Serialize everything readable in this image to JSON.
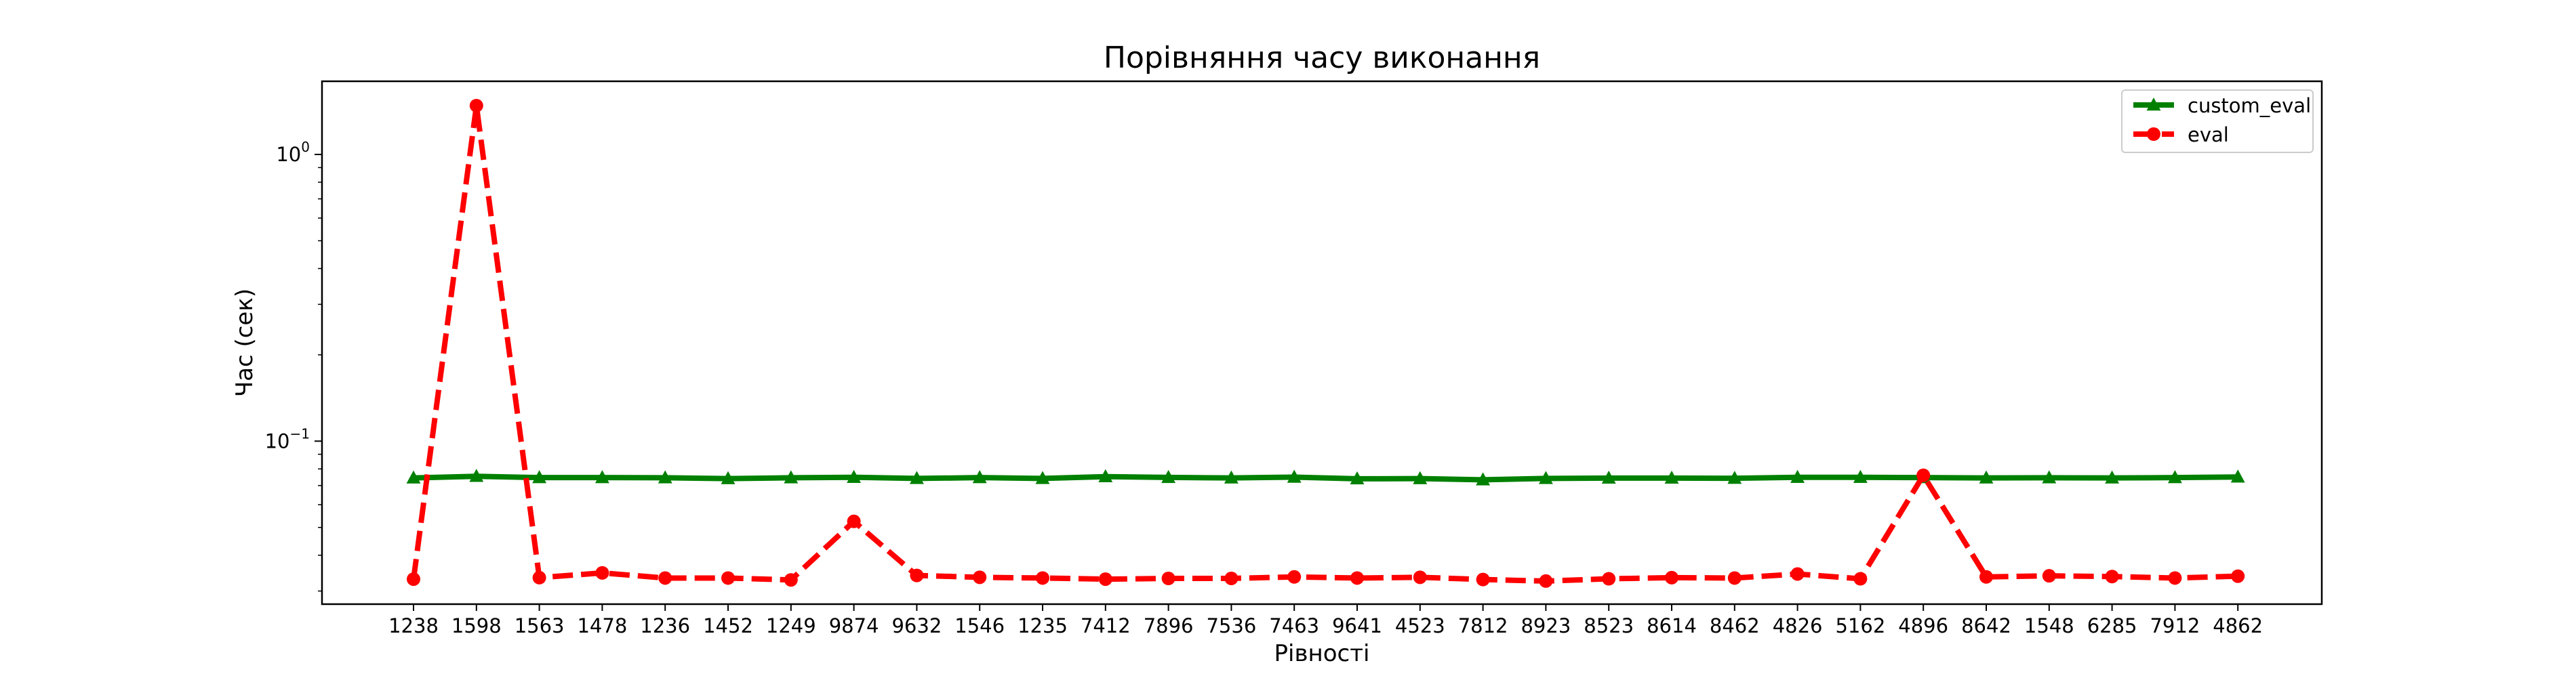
{
  "chart_data": {
    "type": "line",
    "title": "Порівняння часу виконання",
    "xlabel": "Рівності",
    "ylabel": "Час (сек)",
    "yscale": "log",
    "ylim": [
      0.027,
      1.8
    ],
    "yticks": [
      {
        "value": 0.1,
        "base": "10",
        "exp": "−1"
      },
      {
        "value": 1.0,
        "base": "10",
        "exp": "0"
      }
    ],
    "categories": [
      "1238",
      "1598",
      "1563",
      "1478",
      "1236",
      "1452",
      "1249",
      "9874",
      "9632",
      "1546",
      "1235",
      "7412",
      "7896",
      "7536",
      "7463",
      "9641",
      "4523",
      "7812",
      "8923",
      "8523",
      "8614",
      "8462",
      "4826",
      "5162",
      "4896",
      "8642",
      "1548",
      "6285",
      "7912",
      "4862"
    ],
    "series": [
      {
        "name": "custom_eval",
        "color": "#008000",
        "linestyle": "solid",
        "marker": "triangle",
        "values": [
          0.0744,
          0.0754,
          0.0746,
          0.0746,
          0.0745,
          0.074,
          0.0745,
          0.0748,
          0.0741,
          0.0746,
          0.0741,
          0.0752,
          0.0747,
          0.0744,
          0.0749,
          0.0739,
          0.074,
          0.0733,
          0.0741,
          0.0743,
          0.0743,
          0.0742,
          0.0748,
          0.0748,
          0.0746,
          0.0744,
          0.0745,
          0.0744,
          0.0746,
          0.075
        ]
      },
      {
        "name": "eval",
        "color": "#ff0000",
        "linestyle": "dashed",
        "marker": "circle",
        "values": [
          0.033,
          1.48,
          0.0334,
          0.0347,
          0.0333,
          0.0333,
          0.0328,
          0.0525,
          0.034,
          0.0335,
          0.0333,
          0.033,
          0.0332,
          0.0332,
          0.0336,
          0.0333,
          0.0335,
          0.0329,
          0.0325,
          0.0331,
          0.0334,
          0.0333,
          0.0344,
          0.0331,
          0.076,
          0.0336,
          0.0339,
          0.0337,
          0.0333,
          0.0338
        ]
      }
    ],
    "grid": false,
    "legend": "top-right"
  }
}
